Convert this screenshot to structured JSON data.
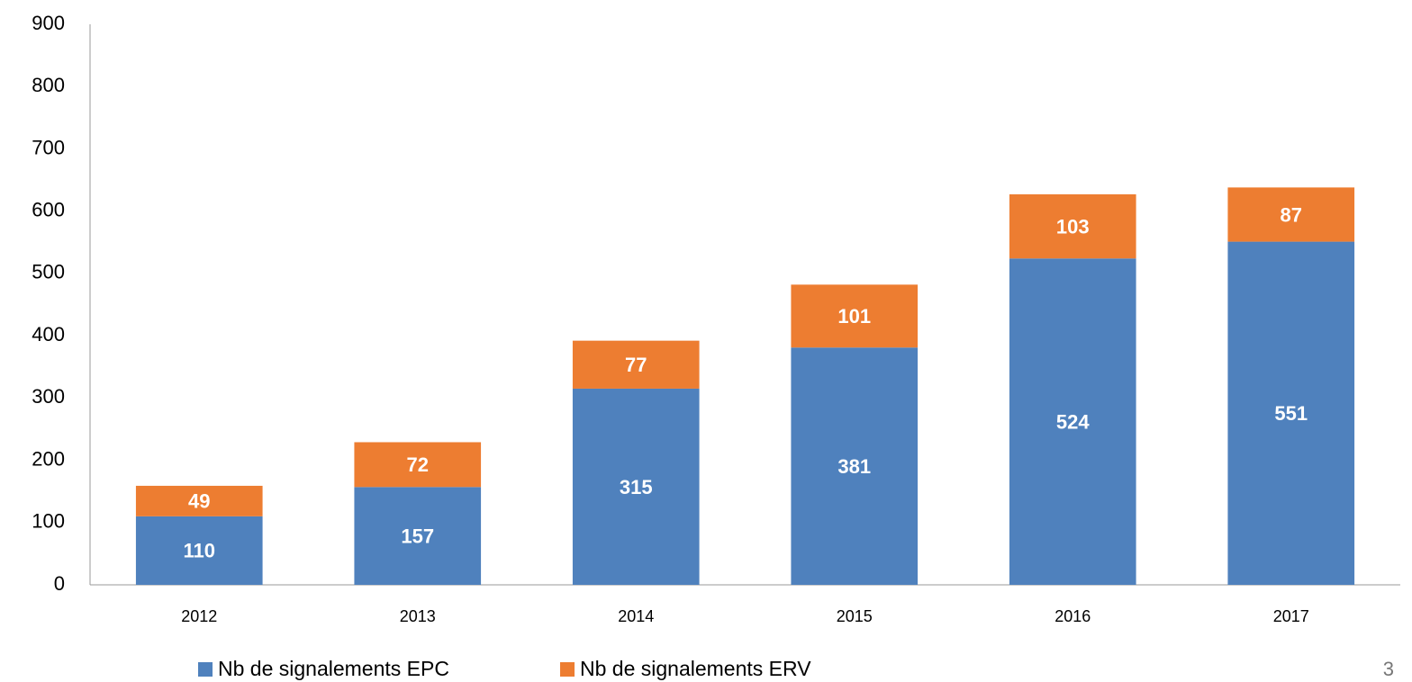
{
  "chart_data": {
    "type": "stacked_bar",
    "categories": [
      "2012",
      "2013",
      "2014",
      "2015",
      "2016",
      "2017"
    ],
    "series": [
      {
        "name": "Nb de signalements EPC",
        "color": "#4f81bd",
        "values": [
          110,
          157,
          315,
          381,
          524,
          551
        ]
      },
      {
        "name": "Nb de signalements ERV",
        "color": "#ed7d31",
        "values": [
          49,
          72,
          77,
          101,
          103,
          87
        ]
      }
    ],
    "ylim": [
      0,
      900
    ],
    "yticks": [
      0,
      100,
      200,
      300,
      400,
      500,
      600,
      700,
      800,
      900
    ],
    "grid": false,
    "legend": "bottom"
  },
  "footer": {
    "page_number": "3"
  }
}
